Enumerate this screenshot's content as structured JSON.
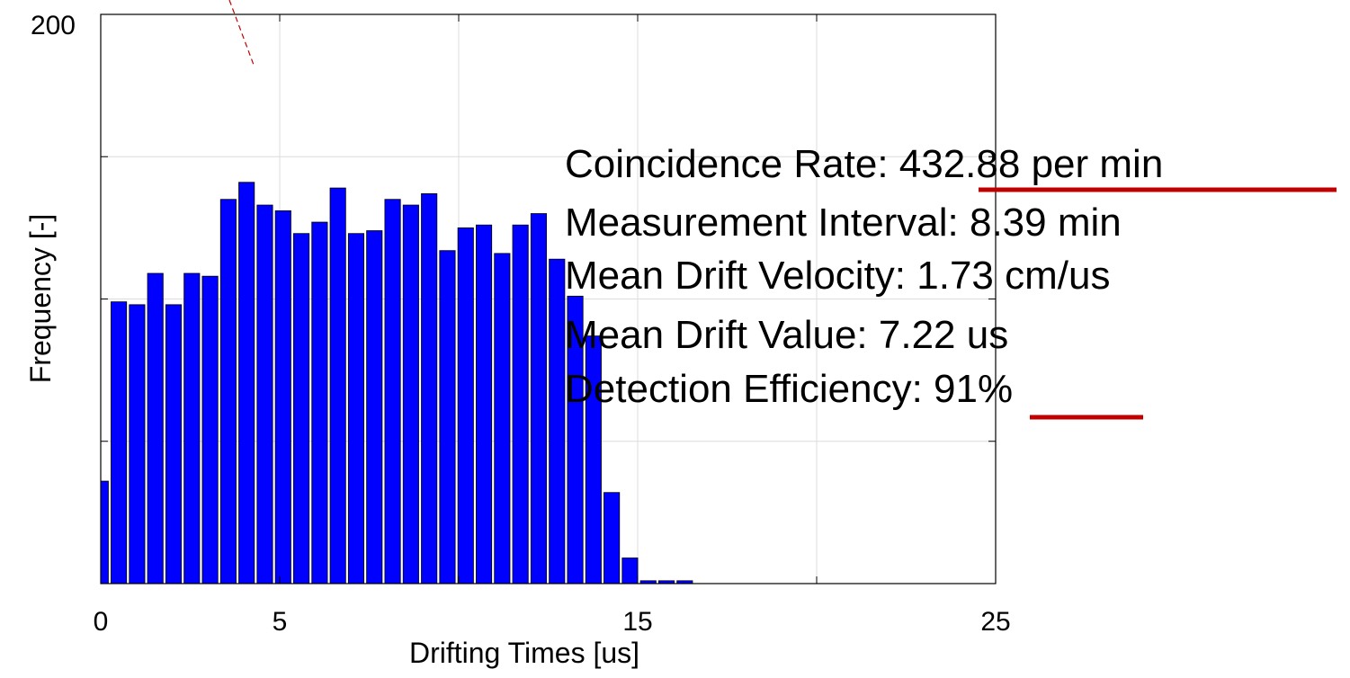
{
  "chart_data": {
    "type": "histogram",
    "xlabel": "Drifting Times [us]",
    "ylabel": "Frequency [-]",
    "bins": [
      -0.26,
      0.25,
      0.76,
      1.27,
      1.78,
      2.29,
      2.8,
      3.31,
      3.82,
      4.33,
      4.84,
      5.35,
      5.86,
      6.37,
      6.88,
      7.39,
      7.9,
      8.41,
      8.92,
      9.43,
      9.94,
      10.45,
      10.96,
      11.47,
      11.98,
      12.49,
      13.0,
      13.51,
      14.02,
      14.53,
      15.04,
      15.55,
      16.06,
      16.57
    ],
    "values": [
      36,
      99,
      98,
      109,
      98,
      109,
      108,
      135,
      141,
      133,
      131,
      123,
      127,
      139,
      123,
      124,
      135,
      133,
      137,
      117,
      125,
      126,
      116,
      126,
      130,
      114,
      101,
      87,
      32,
      9,
      1,
      1,
      1
    ],
    "color": "#0000ff",
    "xlim": [
      0,
      25
    ],
    "xticks": [
      0,
      5,
      {
        "value": 10,
        "label": null
      },
      15,
      {
        "value": 20,
        "label": null
      },
      25
    ],
    "ylim": [
      0,
      200
    ],
    "yticks": [
      {
        "value": 0,
        "label": null
      },
      {
        "value": 50,
        "label": null
      },
      {
        "value": 100,
        "label": null
      },
      {
        "value": 150,
        "label": null
      },
      200
    ],
    "grid": true,
    "annotations": [
      "Coincidence Rate: 432.88 per min",
      "Measurement Interval: 8.39 min",
      "Mean Drift Velocity: 1.73 cm/us",
      "Mean Drift Value: 7.22 us",
      "Detection Efficiency: 91%"
    ]
  }
}
